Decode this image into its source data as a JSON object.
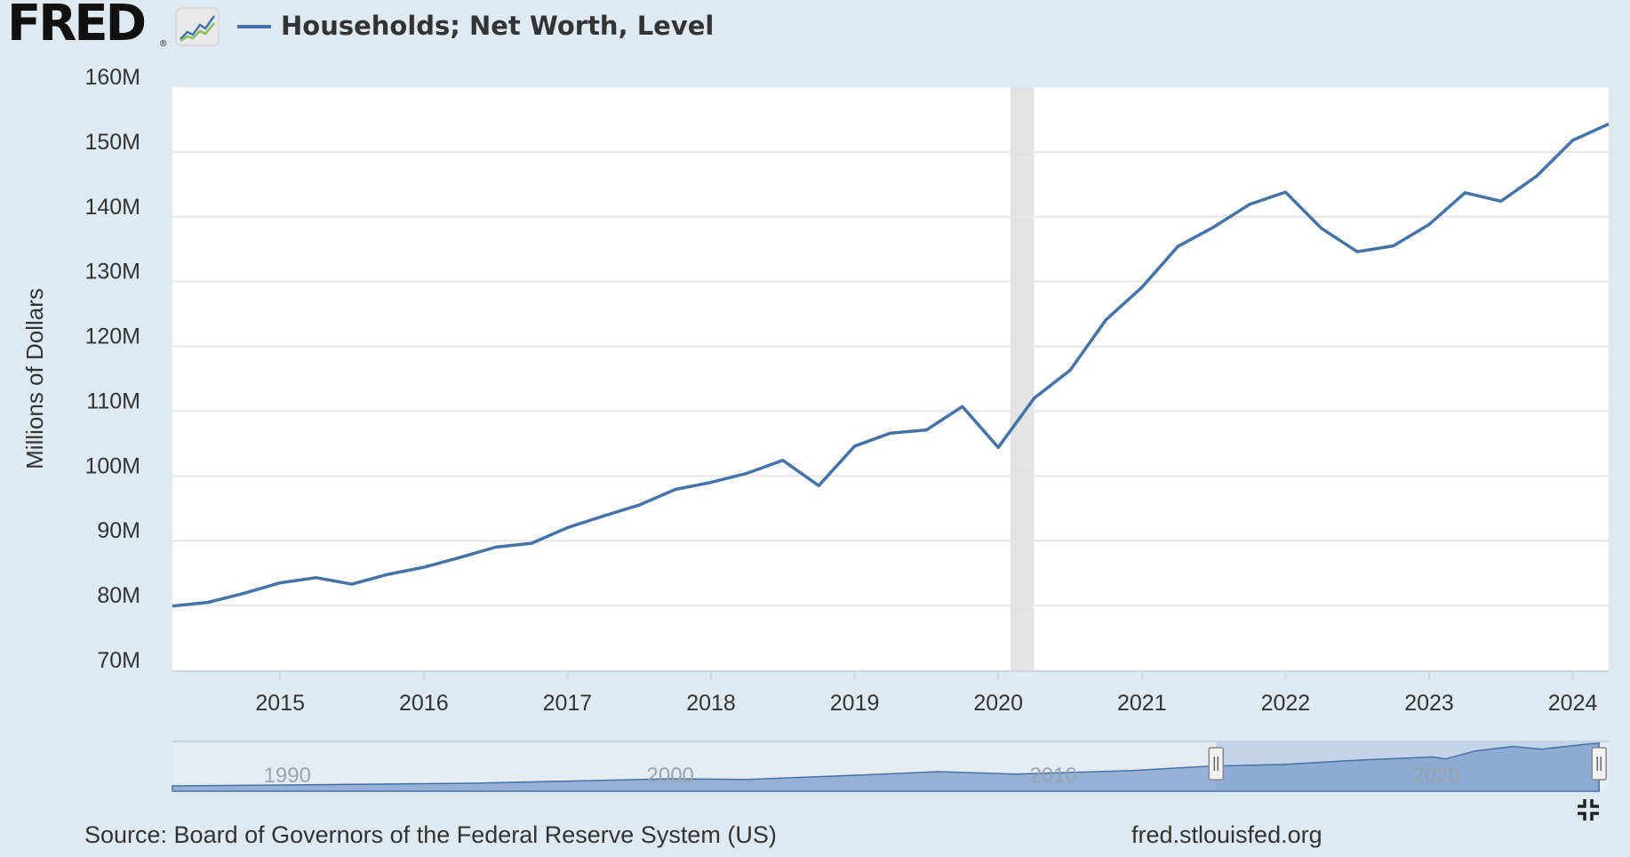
{
  "header": {
    "logo_text": "FRED",
    "logo_reg": "®",
    "legend_label": "Households; Net Worth, Level"
  },
  "footer": {
    "source": "Source: Board of Governors of the Federal Reserve System (US)",
    "site": "fred.stlouisfed.org"
  },
  "colors": {
    "series": "#4572a7",
    "background": "#e1e9f0",
    "plot": "#ffffff",
    "recession": "#e3e3e3",
    "navigator_fill": "#7b9dcb"
  },
  "chart_data": {
    "type": "line",
    "title": "Households; Net Worth, Level",
    "xlabel": "",
    "ylabel": "Millions of Dollars",
    "ylim": [
      70,
      160
    ],
    "xlim": [
      2014.25,
      2024.25
    ],
    "y_ticks": [
      {
        "value": 70,
        "label": "70M"
      },
      {
        "value": 80,
        "label": "80M"
      },
      {
        "value": 90,
        "label": "90M"
      },
      {
        "value": 100,
        "label": "100M"
      },
      {
        "value": 110,
        "label": "110M"
      },
      {
        "value": 120,
        "label": "120M"
      },
      {
        "value": 130,
        "label": "130M"
      },
      {
        "value": 140,
        "label": "140M"
      },
      {
        "value": 150,
        "label": "150M"
      },
      {
        "value": 160,
        "label": "160M"
      }
    ],
    "x_ticks": [
      {
        "value": 2015,
        "label": "2015"
      },
      {
        "value": 2016,
        "label": "2016"
      },
      {
        "value": 2017,
        "label": "2017"
      },
      {
        "value": 2018,
        "label": "2018"
      },
      {
        "value": 2019,
        "label": "2019"
      },
      {
        "value": 2020,
        "label": "2020"
      },
      {
        "value": 2021,
        "label": "2021"
      },
      {
        "value": 2022,
        "label": "2022"
      },
      {
        "value": 2023,
        "label": "2023"
      },
      {
        "value": 2024,
        "label": "2024"
      }
    ],
    "grid": true,
    "legend": "top-left",
    "recession": {
      "start": 2020.0833,
      "end": 2020.25
    },
    "series": [
      {
        "name": "Households; Net Worth, Level",
        "x": [
          2014.25,
          2014.5,
          2014.75,
          2015,
          2015.25,
          2015.5,
          2015.75,
          2016,
          2016.25,
          2016.5,
          2016.75,
          2017,
          2017.25,
          2017.5,
          2017.75,
          2018,
          2018.25,
          2018.5,
          2018.75,
          2019,
          2019.25,
          2019.5,
          2019.75,
          2020,
          2020.25,
          2020.5,
          2020.75,
          2021,
          2021.25,
          2021.5,
          2021.75,
          2022,
          2022.25,
          2022.5,
          2022.75,
          2023,
          2023.25,
          2023.5,
          2023.75,
          2024,
          2024.25
        ],
        "values": [
          79.9,
          80.5,
          81.9,
          83.5,
          84.3,
          83.3,
          84.8,
          85.9,
          87.4,
          89.0,
          89.6,
          92.0,
          93.8,
          95.5,
          97.9,
          99.0,
          100.4,
          102.4,
          98.5,
          104.6,
          106.6,
          107.1,
          110.7,
          104.4,
          112.0,
          116.3,
          124.1,
          129.1,
          135.4,
          138.4,
          141.9,
          143.8,
          138.2,
          134.6,
          135.5,
          138.8,
          143.7,
          142.4,
          146.3,
          151.8,
          154.3
        ]
      }
    ],
    "navigator": {
      "type": "area",
      "x_labels": [
        {
          "value": 1990,
          "label": "1990"
        },
        {
          "value": 2000,
          "label": "2000"
        },
        {
          "value": 2010,
          "label": "2010"
        },
        {
          "value": 2020,
          "label": "2020"
        }
      ],
      "xlim": [
        1987,
        2024.5
      ],
      "selected": [
        2014.25,
        2024.25
      ],
      "ylim": [
        0,
        160
      ],
      "x": [
        1987,
        1990,
        1995,
        2000,
        2002,
        2005,
        2007,
        2009,
        2012,
        2014,
        2016,
        2018,
        2019.9,
        2020.25,
        2021,
        2022,
        2022.75,
        2023,
        2024,
        2024.25
      ],
      "values": [
        17,
        20,
        26,
        40,
        38,
        52,
        63,
        55,
        66,
        80,
        86,
        100,
        110,
        104,
        129,
        144,
        135,
        139,
        152,
        154
      ]
    }
  }
}
